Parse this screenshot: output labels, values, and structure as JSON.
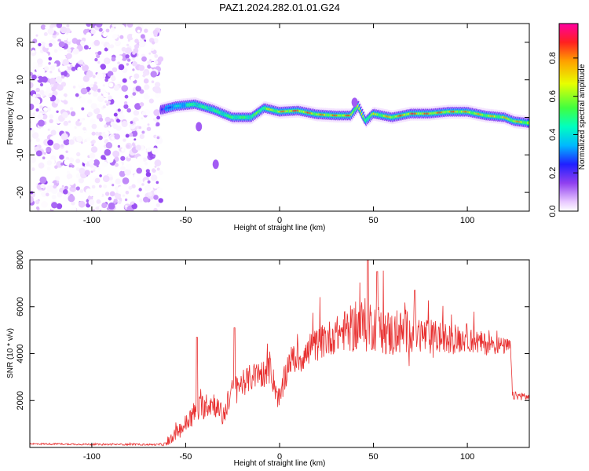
{
  "title": "PAZ1.2024.282.01.01.G24",
  "chart_data": [
    {
      "type": "heatmap",
      "xlabel": "Height of straight line (km)",
      "ylabel": "Frequency (Hz)",
      "xlim": [
        -133,
        133
      ],
      "ylim": [
        -25,
        25
      ],
      "x_ticks": [
        -100,
        -50,
        0,
        50,
        100
      ],
      "y_ticks": [
        -20,
        -10,
        0,
        10,
        20
      ],
      "colorbar": {
        "label": "Normalized spectral amplitude",
        "range": [
          0,
          0.98
        ],
        "ticks": [
          0.0,
          0.2,
          0.4,
          0.6,
          0.8
        ],
        "colormap": [
          "#ffffff",
          "#e8c8ff",
          "#9040f0",
          "#2020ff",
          "#00b8ff",
          "#00ffc0",
          "#40ff40",
          "#e8ff00",
          "#ffa000",
          "#ff2020",
          "#ff00a0"
        ]
      },
      "noise_region_x": [
        -133,
        -63
      ],
      "ridge": {
        "x": [
          -63,
          -55,
          -45,
          -35,
          -25,
          -15,
          -8,
          0,
          10,
          20,
          30,
          38,
          42,
          46,
          50,
          60,
          70,
          80,
          90,
          100,
          110,
          120,
          125,
          133
        ],
        "frequency": [
          2.0,
          3.0,
          3.5,
          2.0,
          0.0,
          0.0,
          2.5,
          1.5,
          1.8,
          0.8,
          0.5,
          0.5,
          3.0,
          -1.0,
          1.0,
          0.0,
          1.0,
          1.0,
          1.5,
          1.5,
          0.5,
          0.0,
          -1.0,
          -1.5
        ],
        "peak_amplitude": [
          0.3,
          0.5,
          0.55,
          0.55,
          0.6,
          0.6,
          0.7,
          0.85,
          0.95,
          0.85,
          0.9,
          0.9,
          0.8,
          0.7,
          0.75,
          0.85,
          0.95,
          0.9,
          0.9,
          0.85,
          0.8,
          0.8,
          0.85,
          0.8
        ]
      },
      "side_features": [
        {
          "x": -43,
          "frequency": -2.5
        },
        {
          "x": -34,
          "frequency": -12.5
        },
        {
          "x": 40,
          "frequency": 4.0
        }
      ]
    },
    {
      "type": "line",
      "xlabel": "Height of straight line (km)",
      "ylabel": "SNR (10 * v/v)",
      "xlim": [
        -133,
        133
      ],
      "ylim": [
        0,
        8000
      ],
      "x_ticks": [
        -100,
        -50,
        0,
        50,
        100
      ],
      "y_ticks": [
        2000,
        4000,
        6000,
        8000
      ],
      "color": "#e83030",
      "series": [
        {
          "x": [
            -133,
            -120,
            -100,
            -80,
            -65,
            -60,
            -55,
            -50,
            -45,
            -40,
            -35,
            -30,
            -25,
            -20,
            -15,
            -10,
            -5,
            0,
            5,
            10,
            15,
            20,
            25,
            30,
            35,
            40,
            45,
            50,
            55,
            60,
            65,
            70,
            75,
            80,
            85,
            90,
            95,
            100,
            105,
            110,
            115,
            120,
            123,
            124,
            128,
            133
          ],
          "y": [
            150,
            150,
            130,
            130,
            120,
            150,
            600,
            1000,
            1500,
            1800,
            1900,
            1300,
            2500,
            2700,
            3000,
            3100,
            3300,
            1950,
            3700,
            3800,
            4000,
            4400,
            4600,
            4800,
            5000,
            5100,
            5200,
            5200,
            5000,
            4800,
            4900,
            5000,
            4800,
            4700,
            4700,
            4600,
            4600,
            4700,
            4500,
            4400,
            4400,
            4300,
            4300,
            2200,
            2200,
            2150
          ],
          "spread": [
            60,
            60,
            60,
            60,
            60,
            150,
            500,
            700,
            900,
            1000,
            900,
            800,
            800,
            900,
            1000,
            1000,
            1000,
            900,
            1000,
            1100,
            1200,
            1200,
            1300,
            1300,
            1500,
            1800,
            2000,
            1800,
            1700,
            1700,
            1600,
            1600,
            1400,
            1300,
            1200,
            1100,
            1000,
            1000,
            900,
            800,
            700,
            600,
            600,
            300,
            300,
            300
          ]
        }
      ],
      "notable_peaks": [
        {
          "x": -44,
          "y": 4700
        },
        {
          "x": -24,
          "y": 5100
        },
        {
          "x": 47,
          "y": 8000
        },
        {
          "x": 52,
          "y": 7500
        },
        {
          "x": 72,
          "y": 6700
        }
      ]
    }
  ]
}
